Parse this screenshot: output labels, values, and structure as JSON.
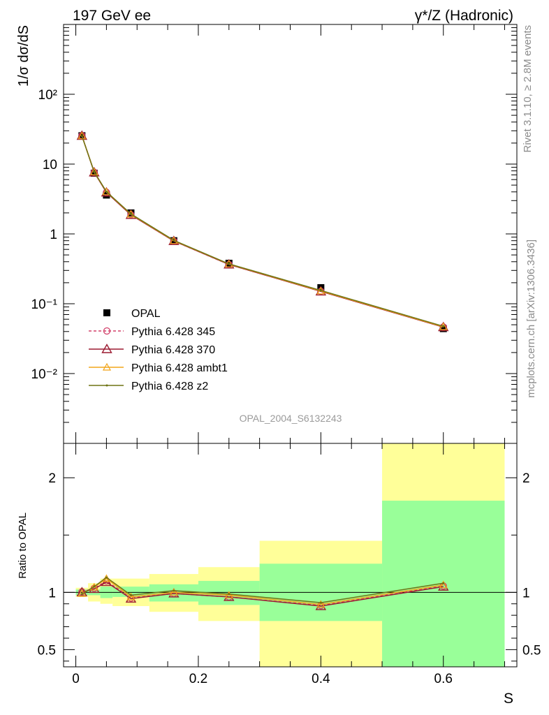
{
  "header": {
    "left_label": "197 GeV ee",
    "right_label_prefix": "γ*/Z",
    "right_label_suffix": " (Hadronic)"
  },
  "side": {
    "rivet_label": "Rivet 3.1.10, ≥ 2.8M events",
    "mcplots_label": "mcplots.cern.ch [arXiv:1306.3436]"
  },
  "analysis_label": "OPAL_2004_S6132243",
  "chart_data": [
    {
      "type": "line",
      "panel": "main",
      "ylabel": "1/σ dσ/dS",
      "yscale": "log",
      "ylim": [
        0.001,
        1000
      ],
      "xlim": [
        -0.02,
        0.72
      ],
      "y_tick_labels": [
        "10⁻²",
        "10⁻¹",
        "1",
        "10",
        "10²"
      ],
      "y_tick_values": [
        0.01,
        0.1,
        1,
        10,
        100
      ],
      "x": [
        0.01,
        0.03,
        0.05,
        0.09,
        0.16,
        0.25,
        0.4,
        0.6
      ],
      "x_edges": [
        0.0,
        0.02,
        0.04,
        0.06,
        0.12,
        0.2,
        0.3,
        0.5,
        0.7
      ],
      "data": {
        "name": "OPAL",
        "values": [
          25.5,
          7.4,
          3.6,
          2.0,
          0.8,
          0.38,
          0.17,
          0.044
        ]
      },
      "series": [
        {
          "name": "Pythia 6.428 345",
          "color": "#d2406a",
          "values": [
            25.6,
            7.65,
            3.95,
            1.88,
            0.79,
            0.365,
            0.151,
            0.0465
          ]
        },
        {
          "name": "Pythia 6.428 370",
          "color": "#9b1a30",
          "values": [
            25.4,
            7.6,
            3.92,
            1.87,
            0.79,
            0.365,
            0.15,
            0.0462
          ]
        },
        {
          "name": "Pythia 6.428 ambt1",
          "color": "#f2a51a",
          "values": [
            25.3,
            7.7,
            4.0,
            1.91,
            0.8,
            0.37,
            0.152,
            0.0468
          ]
        },
        {
          "name": "Pythia 6.428 z2",
          "color": "#6e7414",
          "values": [
            25.2,
            7.72,
            4.03,
            1.93,
            0.81,
            0.372,
            0.155,
            0.0475
          ]
        }
      ],
      "legend": "lower-left"
    },
    {
      "type": "line",
      "panel": "ratio",
      "ylabel": "Ratio to OPAL",
      "xlabel": "S",
      "ylim": [
        0.35,
        2.3
      ],
      "xlim": [
        -0.02,
        0.72
      ],
      "x_tick_labels": [
        "0",
        "0.2",
        "0.4",
        "0.6"
      ],
      "x_tick_values": [
        0,
        0.2,
        0.4,
        0.6
      ],
      "y_tick_labels": [
        "0.5",
        "1",
        "2"
      ],
      "y_tick_values": [
        0.5,
        1,
        2
      ],
      "reference": 1.0,
      "band_stat": [
        [
          0.975,
          1.025
        ],
        [
          0.975,
          1.025
        ],
        [
          0.95,
          1.05
        ],
        [
          0.96,
          1.05
        ],
        [
          0.92,
          1.07
        ],
        [
          0.89,
          1.1
        ],
        [
          0.75,
          1.25
        ],
        [
          0.35,
          1.8
        ]
      ],
      "band_total": [
        [
          0.96,
          1.04
        ],
        [
          0.92,
          1.08
        ],
        [
          0.9,
          1.12
        ],
        [
          0.88,
          1.12
        ],
        [
          0.83,
          1.16
        ],
        [
          0.75,
          1.22
        ],
        [
          0.35,
          1.45
        ],
        [
          0.35,
          2.3
        ]
      ],
      "x": [
        0.01,
        0.03,
        0.05,
        0.09,
        0.16,
        0.25,
        0.4,
        0.6
      ],
      "series": [
        {
          "name": "Pythia 6.428 345",
          "color": "#d2406a",
          "values": [
            1.005,
            1.035,
            1.1,
            0.95,
            0.99,
            0.96,
            0.885,
            1.055
          ]
        },
        {
          "name": "Pythia 6.428 370",
          "color": "#9b1a30",
          "values": [
            1.0,
            1.03,
            1.09,
            0.945,
            0.99,
            0.96,
            0.88,
            1.05
          ]
        },
        {
          "name": "Pythia 6.428 ambt1",
          "color": "#f2a51a",
          "values": [
            0.99,
            1.045,
            1.12,
            0.96,
            1.0,
            0.975,
            0.895,
            1.065
          ]
        },
        {
          "name": "Pythia 6.428 z2",
          "color": "#6e7414",
          "values": [
            0.985,
            1.05,
            1.13,
            0.975,
            1.015,
            0.985,
            0.91,
            1.08
          ]
        }
      ]
    }
  ],
  "colors": {
    "band_stat": "#99ff99",
    "band_total": "#ffff99",
    "data_marker": "#000000"
  }
}
